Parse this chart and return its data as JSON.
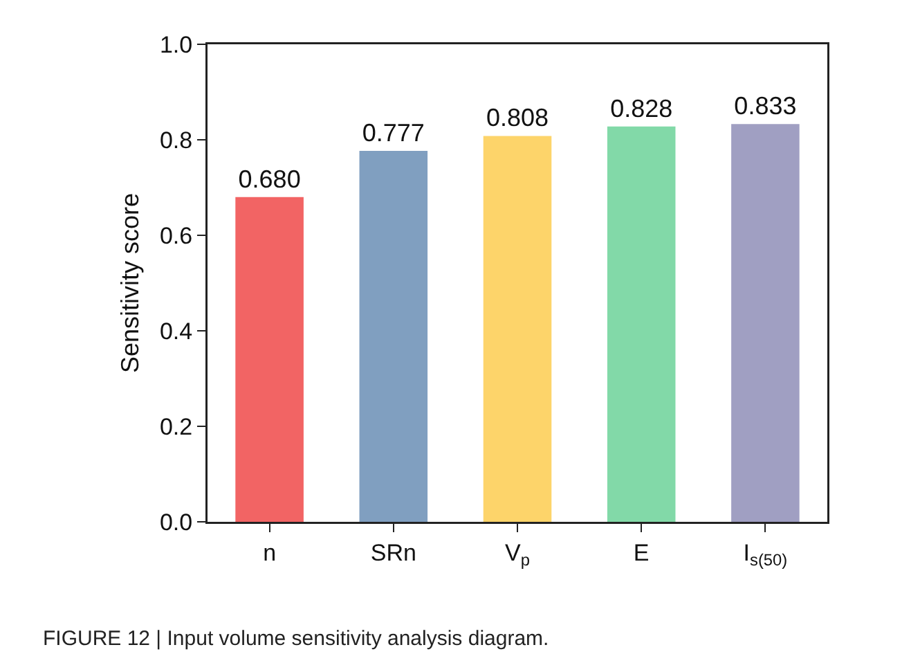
{
  "chart_data": {
    "type": "bar",
    "ylabel": "Sensitivity score",
    "categories": [
      "n",
      "SRn",
      "V$_{p}$",
      "E",
      "I$_{s(50)}$"
    ],
    "values": [
      0.68,
      0.777,
      0.808,
      0.828,
      0.833
    ],
    "colors": [
      "#f26464",
      "#809fc0",
      "#fdd46a",
      "#82d9a8",
      "#a09fc2"
    ],
    "ylim": [
      0,
      1.0
    ],
    "yticks": [
      {
        "value": 0,
        "label": "0.0"
      },
      0.2,
      0.4,
      0.6,
      0.8,
      {
        "value": 1,
        "label": "1.0"
      }
    ],
    "value_labels": [
      "0.680",
      "0.777",
      "0.808",
      "0.828",
      "0.833"
    ],
    "grid": false,
    "legend": false,
    "annotations": [
      "FIGURE 12 | Input volume sensitivity analysis diagram."
    ]
  }
}
